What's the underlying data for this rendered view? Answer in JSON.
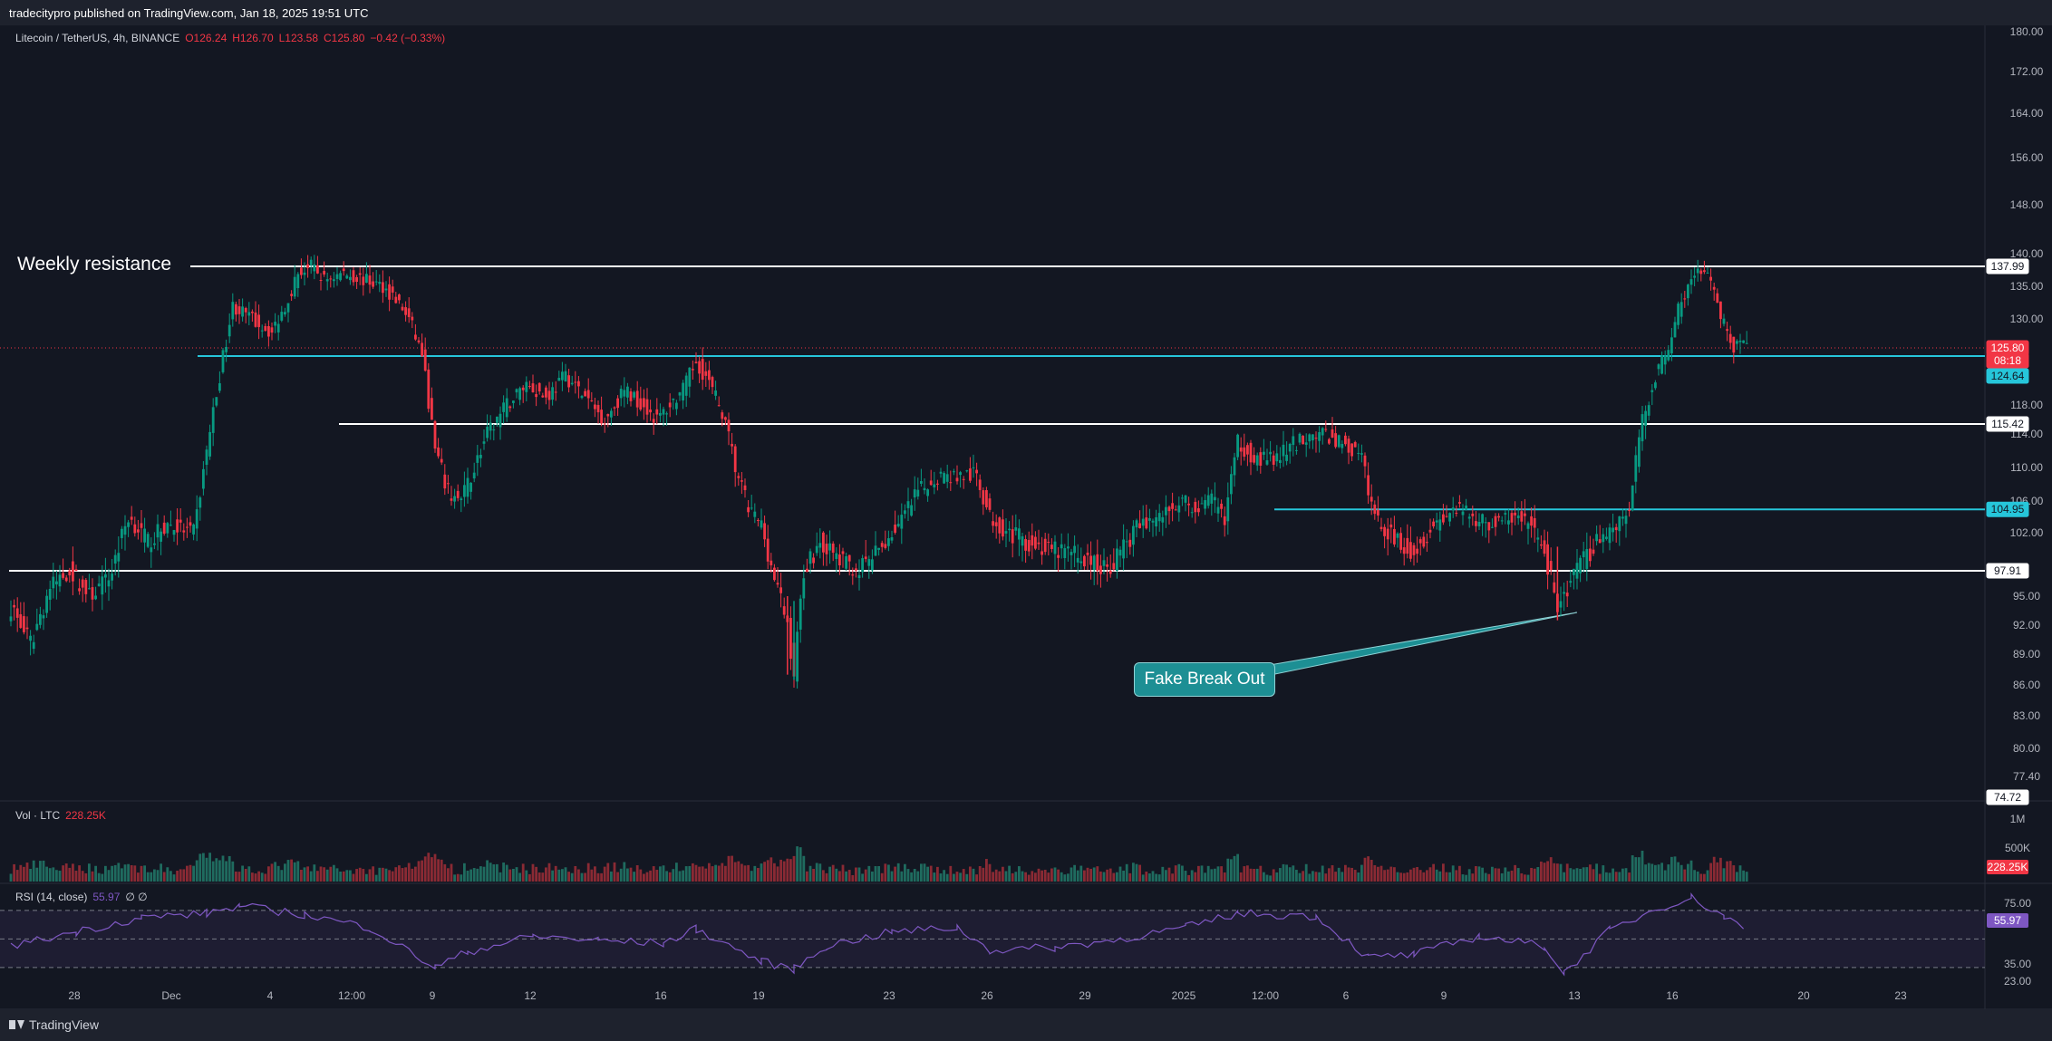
{
  "header": {
    "publisher": "tradecitypro published on TradingView.com, Jan 18, 2025 19:51 UTC"
  },
  "legend": {
    "symbol": "Litecoin / TetherUS, 4h, BINANCE",
    "open": "O126.24",
    "high": "H126.70",
    "low": "L123.58",
    "close": "C125.80",
    "change": "−0.42 (−0.33%)"
  },
  "volume_legend": {
    "label": "Vol · LTC",
    "value": "228.25K"
  },
  "rsi_legend": {
    "label": "RSI (14, close)",
    "value": "55.97",
    "extra": "∅ ∅"
  },
  "annotations": {
    "weekly": "Weekly resistance",
    "fake": "Fake Break Out"
  },
  "footer": {
    "brand": "TradingView"
  },
  "colors": {
    "bg": "#131722",
    "up": "#089981",
    "down": "#f23645",
    "cyan": "#26c6da",
    "rsi": "#7e57c2"
  },
  "chart_data": {
    "type": "candlestick",
    "symbol": "LTCUSDT",
    "interval": "4h",
    "price_axis": {
      "ticks": [
        "180.00",
        "172.00",
        "164.00",
        "156.00",
        "148.00",
        "140.00",
        "135.00",
        "130.00",
        "118.00",
        "114.00",
        "110.00",
        "106.00",
        "102.00",
        "95.00",
        "92.00",
        "89.00",
        "86.00",
        "83.00",
        "80.00",
        "77.40"
      ],
      "labels": [
        {
          "text": "137.99",
          "value": 137.99,
          "style": "white"
        },
        {
          "text": "125.80",
          "value": 125.8,
          "style": "red"
        },
        {
          "text": "08:18",
          "value": 124.9,
          "style": "red"
        },
        {
          "text": "124.64",
          "value": 124.64,
          "style": "cyan"
        },
        {
          "text": "115.42",
          "value": 115.42,
          "style": "white"
        },
        {
          "text": "104.95",
          "value": 104.95,
          "style": "cyan"
        },
        {
          "text": "97.91",
          "value": 97.91,
          "style": "white"
        },
        {
          "text": "74.72",
          "value": 74.72,
          "style": "white"
        }
      ]
    },
    "time_axis": [
      "28",
      "Dec",
      "4",
      "12:00",
      "9",
      "12",
      "16",
      "19",
      "23",
      "26",
      "29",
      "2025",
      "12:00",
      "6",
      "9",
      "13",
      "16",
      "20",
      "23"
    ],
    "levels": [
      {
        "name": "Weekly resistance",
        "value": 137.99,
        "color": "#ffffff"
      },
      {
        "name": "",
        "value": 124.64,
        "color": "#26c6da"
      },
      {
        "name": "",
        "value": 115.42,
        "color": "#ffffff"
      },
      {
        "name": "",
        "value": 104.95,
        "color": "#26c6da"
      },
      {
        "name": "",
        "value": 97.91,
        "color": "#ffffff"
      }
    ],
    "close_path": [
      {
        "i": 0,
        "v": 94
      },
      {
        "i": 6,
        "v": 90
      },
      {
        "i": 12,
        "v": 96
      },
      {
        "i": 18,
        "v": 98
      },
      {
        "i": 24,
        "v": 95
      },
      {
        "i": 30,
        "v": 97
      },
      {
        "i": 36,
        "v": 104
      },
      {
        "i": 42,
        "v": 101
      },
      {
        "i": 48,
        "v": 103
      },
      {
        "i": 56,
        "v": 102
      },
      {
        "i": 60,
        "v": 112
      },
      {
        "i": 64,
        "v": 122
      },
      {
        "i": 68,
        "v": 132
      },
      {
        "i": 74,
        "v": 130
      },
      {
        "i": 80,
        "v": 128
      },
      {
        "i": 84,
        "v": 132
      },
      {
        "i": 88,
        "v": 137
      },
      {
        "i": 92,
        "v": 138
      },
      {
        "i": 96,
        "v": 136
      },
      {
        "i": 102,
        "v": 137
      },
      {
        "i": 108,
        "v": 136
      },
      {
        "i": 114,
        "v": 135
      },
      {
        "i": 118,
        "v": 133
      },
      {
        "i": 122,
        "v": 130
      },
      {
        "i": 126,
        "v": 125
      },
      {
        "i": 130,
        "v": 112
      },
      {
        "i": 134,
        "v": 107
      },
      {
        "i": 138,
        "v": 106
      },
      {
        "i": 142,
        "v": 110
      },
      {
        "i": 146,
        "v": 114
      },
      {
        "i": 152,
        "v": 118
      },
      {
        "i": 158,
        "v": 121
      },
      {
        "i": 164,
        "v": 119
      },
      {
        "i": 170,
        "v": 122
      },
      {
        "i": 176,
        "v": 119
      },
      {
        "i": 182,
        "v": 116
      },
      {
        "i": 188,
        "v": 120
      },
      {
        "i": 194,
        "v": 118
      },
      {
        "i": 198,
        "v": 116
      },
      {
        "i": 202,
        "v": 118
      },
      {
        "i": 206,
        "v": 120
      },
      {
        "i": 210,
        "v": 124
      },
      {
        "i": 214,
        "v": 121
      },
      {
        "i": 218,
        "v": 117
      },
      {
        "i": 222,
        "v": 110
      },
      {
        "i": 226,
        "v": 105
      },
      {
        "i": 230,
        "v": 103
      },
      {
        "i": 234,
        "v": 97
      },
      {
        "i": 238,
        "v": 92
      },
      {
        "i": 240,
        "v": 87
      },
      {
        "i": 243,
        "v": 98
      },
      {
        "i": 248,
        "v": 101
      },
      {
        "i": 254,
        "v": 99
      },
      {
        "i": 260,
        "v": 98
      },
      {
        "i": 266,
        "v": 100
      },
      {
        "i": 272,
        "v": 103
      },
      {
        "i": 278,
        "v": 107
      },
      {
        "i": 284,
        "v": 109
      },
      {
        "i": 290,
        "v": 109
      },
      {
        "i": 296,
        "v": 109
      },
      {
        "i": 300,
        "v": 104
      },
      {
        "i": 306,
        "v": 102
      },
      {
        "i": 312,
        "v": 101
      },
      {
        "i": 318,
        "v": 100
      },
      {
        "i": 324,
        "v": 100
      },
      {
        "i": 330,
        "v": 99
      },
      {
        "i": 336,
        "v": 98
      },
      {
        "i": 340,
        "v": 100
      },
      {
        "i": 346,
        "v": 103
      },
      {
        "i": 352,
        "v": 104
      },
      {
        "i": 358,
        "v": 106
      },
      {
        "i": 364,
        "v": 105
      },
      {
        "i": 368,
        "v": 106
      },
      {
        "i": 372,
        "v": 104
      },
      {
        "i": 376,
        "v": 113
      },
      {
        "i": 382,
        "v": 111
      },
      {
        "i": 388,
        "v": 111
      },
      {
        "i": 394,
        "v": 113
      },
      {
        "i": 398,
        "v": 114
      },
      {
        "i": 402,
        "v": 114
      },
      {
        "i": 408,
        "v": 113
      },
      {
        "i": 414,
        "v": 111
      },
      {
        "i": 418,
        "v": 104
      },
      {
        "i": 422,
        "v": 102
      },
      {
        "i": 426,
        "v": 101
      },
      {
        "i": 430,
        "v": 100
      },
      {
        "i": 436,
        "v": 103
      },
      {
        "i": 442,
        "v": 105
      },
      {
        "i": 448,
        "v": 104
      },
      {
        "i": 454,
        "v": 103
      },
      {
        "i": 460,
        "v": 104
      },
      {
        "i": 466,
        "v": 103
      },
      {
        "i": 470,
        "v": 100
      },
      {
        "i": 474,
        "v": 94
      },
      {
        "i": 476,
        "v": 95
      },
      {
        "i": 480,
        "v": 98
      },
      {
        "i": 486,
        "v": 101
      },
      {
        "i": 492,
        "v": 103
      },
      {
        "i": 496,
        "v": 105
      },
      {
        "i": 500,
        "v": 116
      },
      {
        "i": 504,
        "v": 122
      },
      {
        "i": 508,
        "v": 126
      },
      {
        "i": 512,
        "v": 133
      },
      {
        "i": 516,
        "v": 137
      },
      {
        "i": 520,
        "v": 137
      },
      {
        "i": 524,
        "v": 130
      },
      {
        "i": 528,
        "v": 126
      },
      {
        "i": 532,
        "v": 125.8
      }
    ],
    "volume_axis": {
      "ticks": [
        "1M",
        "500K"
      ],
      "last": "228.25K"
    },
    "rsi": {
      "value": 55.97,
      "ticks": [
        "75.00",
        "35.00",
        "23.00"
      ],
      "bands": [
        70,
        50,
        30
      ],
      "path": [
        {
          "i": 0,
          "v": 45
        },
        {
          "i": 20,
          "v": 55
        },
        {
          "i": 40,
          "v": 65
        },
        {
          "i": 60,
          "v": 68
        },
        {
          "i": 70,
          "v": 73
        },
        {
          "i": 90,
          "v": 67
        },
        {
          "i": 110,
          "v": 58
        },
        {
          "i": 130,
          "v": 30
        },
        {
          "i": 140,
          "v": 41
        },
        {
          "i": 160,
          "v": 52
        },
        {
          "i": 180,
          "v": 49
        },
        {
          "i": 200,
          "v": 47
        },
        {
          "i": 210,
          "v": 57
        },
        {
          "i": 230,
          "v": 34
        },
        {
          "i": 240,
          "v": 29
        },
        {
          "i": 250,
          "v": 45
        },
        {
          "i": 270,
          "v": 55
        },
        {
          "i": 290,
          "v": 58
        },
        {
          "i": 300,
          "v": 42
        },
        {
          "i": 320,
          "v": 44
        },
        {
          "i": 340,
          "v": 50
        },
        {
          "i": 360,
          "v": 58
        },
        {
          "i": 376,
          "v": 68
        },
        {
          "i": 400,
          "v": 66
        },
        {
          "i": 416,
          "v": 37
        },
        {
          "i": 430,
          "v": 39
        },
        {
          "i": 450,
          "v": 52
        },
        {
          "i": 470,
          "v": 45
        },
        {
          "i": 476,
          "v": 26
        },
        {
          "i": 490,
          "v": 56
        },
        {
          "i": 505,
          "v": 72
        },
        {
          "i": 515,
          "v": 79
        },
        {
          "i": 525,
          "v": 66
        },
        {
          "i": 532,
          "v": 55.97
        }
      ]
    }
  }
}
